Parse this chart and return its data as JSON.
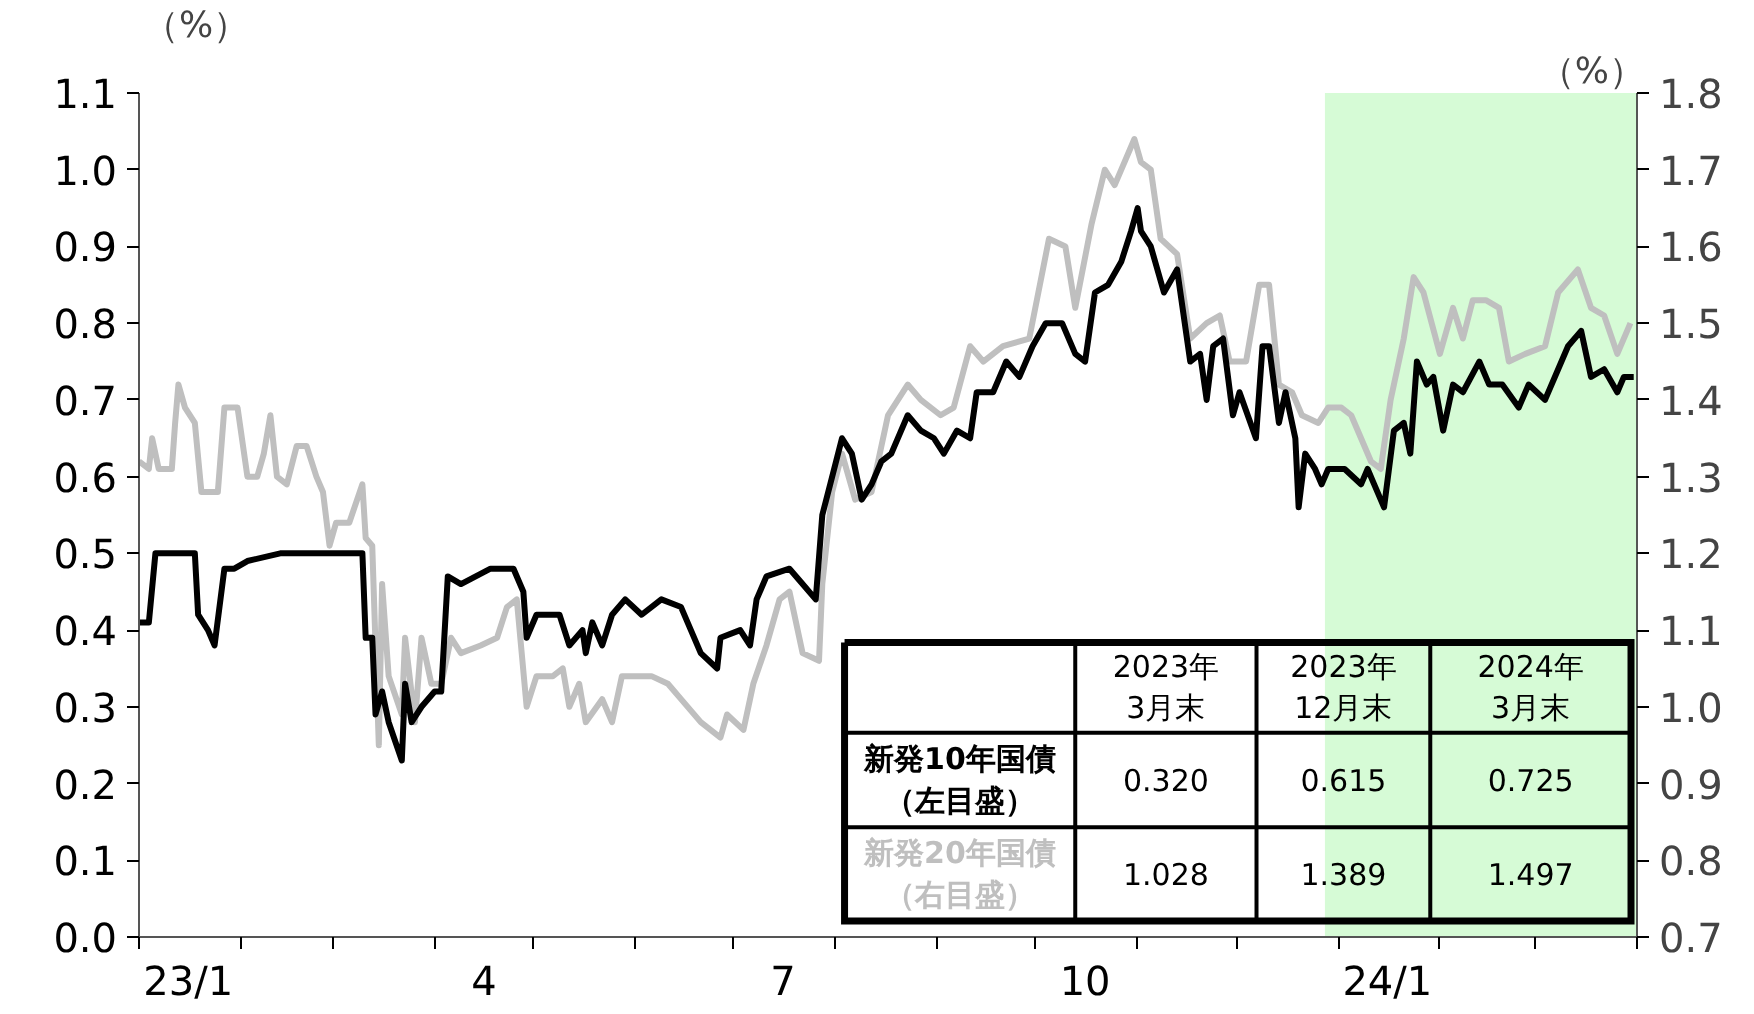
{
  "chart_data": {
    "type": "line",
    "ylabel": "（%）",
    "y2label": "（%）",
    "xlim": [
      "2023-01-01",
      "2024-04-01"
    ],
    "xticks": [
      {
        "value": "2023-01-01",
        "label": null
      },
      {
        "value": "2023-02-01",
        "label": null
      },
      {
        "value": "2023-03-01",
        "label": null
      },
      {
        "value": "2023-04-01",
        "label": null
      },
      {
        "value": "2023-05-01",
        "label": null
      },
      {
        "value": "2023-06-01",
        "label": null
      },
      {
        "value": "2023-07-01",
        "label": null
      },
      {
        "value": "2023-08-01",
        "label": null
      },
      {
        "value": "2023-09-01",
        "label": null
      },
      {
        "value": "2023-10-01",
        "label": null
      },
      {
        "value": "2023-11-01",
        "label": null
      },
      {
        "value": "2023-12-01",
        "label": null
      },
      {
        "value": "2024-01-01",
        "label": null
      },
      {
        "value": "2024-02-01",
        "label": null
      },
      {
        "value": "2024-03-01",
        "label": null
      },
      {
        "value": "2024-04-01",
        "label": null
      },
      {
        "value": "2023-01-16",
        "label": "23/1"
      },
      {
        "value": "2023-04-16",
        "label": "4"
      },
      {
        "value": "2023-07-16",
        "label": "7"
      },
      {
        "value": "2023-10-16",
        "label": "10"
      },
      {
        "value": "2024-01-16",
        "label": "24/1"
      }
    ],
    "ylim": [
      0,
      1.1
    ],
    "yticks": [
      {
        "value": 0,
        "label": "0.0"
      },
      0.1,
      0.2,
      0.3,
      0.4,
      0.5,
      0.6,
      0.7,
      0.8,
      0.9,
      {
        "value": 1,
        "label": "1.0"
      },
      1.1
    ],
    "y2lim": [
      0.7,
      1.8
    ],
    "y2ticks": [
      0.7,
      0.8,
      0.9,
      {
        "value": 1,
        "label": "1.0"
      },
      1.1,
      1.2,
      1.3,
      1.4,
      1.5,
      1.6,
      1.7,
      1.8
    ],
    "grid": false,
    "bands": [
      {
        "axis": "x",
        "from": "2023-12-28",
        "to": "2024-04-01",
        "color": "#d6fbd6"
      }
    ],
    "annotations": [
      "2023年\n3月末",
      "2023年\n12月末",
      "2024年\n3月末",
      "0.320",
      "0.615",
      "0.725",
      "1.028",
      "1.389",
      "1.497"
    ],
    "series": [
      {
        "name": "新発10年国債（左目盛）",
        "color": "#000000",
        "x": [
          "2023-01-01",
          "2023-01-04",
          "2023-01-06",
          "2023-01-18",
          "2023-01-19",
          "2023-01-22",
          "2023-01-24",
          "2023-01-27",
          "2023-01-30",
          "2023-02-03",
          "2023-02-13",
          "2023-03-10",
          "2023-03-11",
          "2023-03-13",
          "2023-03-14",
          "2023-03-16",
          "2023-03-18",
          "2023-03-22",
          "2023-03-23",
          "2023-03-25",
          "2023-03-28",
          "2023-04-01",
          "2023-04-03",
          "2023-04-05",
          "2023-04-09",
          "2023-04-18",
          "2023-04-25",
          "2023-04-28",
          "2023-04-29",
          "2023-05-02",
          "2023-05-09",
          "2023-05-12",
          "2023-05-16",
          "2023-05-17",
          "2023-05-19",
          "2023-05-22",
          "2023-05-25",
          "2023-05-29",
          "2023-06-03",
          "2023-06-09",
          "2023-06-15",
          "2023-06-18",
          "2023-06-21",
          "2023-06-26",
          "2023-06-27",
          "2023-07-03",
          "2023-07-06",
          "2023-07-08",
          "2023-07-11",
          "2023-07-18",
          "2023-07-22",
          "2023-07-26",
          "2023-07-28",
          "2023-07-31",
          "2023-08-03",
          "2023-08-06",
          "2023-08-09",
          "2023-08-12",
          "2023-08-15",
          "2023-08-18",
          "2023-08-23",
          "2023-08-27",
          "2023-08-31",
          "2023-09-03",
          "2023-09-07",
          "2023-09-11",
          "2023-09-13",
          "2023-09-18",
          "2023-09-22",
          "2023-09-26",
          "2023-09-30",
          "2023-10-04",
          "2023-10-09",
          "2023-10-13",
          "2023-10-16",
          "2023-10-19",
          "2023-10-23",
          "2023-10-27",
          "2023-10-30",
          "2023-11-01",
          "2023-11-02",
          "2023-11-05",
          "2023-11-09",
          "2023-11-13",
          "2023-11-17",
          "2023-11-20",
          "2023-11-22",
          "2023-11-24",
          "2023-11-27",
          "2023-11-30",
          "2023-12-02",
          "2023-12-07",
          "2023-12-09",
          "2023-12-11",
          "2023-12-14",
          "2023-12-16",
          "2023-12-19",
          "2023-12-20",
          "2023-12-22",
          "2023-12-25",
          "2023-12-27",
          "2023-12-29",
          "2024-01-03",
          "2024-01-08",
          "2024-01-10",
          "2024-01-12",
          "2024-01-15",
          "2024-01-18",
          "2024-01-21",
          "2024-01-23",
          "2024-01-25",
          "2024-01-28",
          "2024-01-30",
          "2024-02-02",
          "2024-02-05",
          "2024-02-08",
          "2024-02-13",
          "2024-02-16",
          "2024-02-20",
          "2024-02-25",
          "2024-02-28",
          "2024-03-04",
          "2024-03-08",
          "2024-03-11",
          "2024-03-15",
          "2024-03-18",
          "2024-03-22",
          "2024-03-26",
          "2024-03-28",
          "2024-03-31"
        ],
        "values": [
          0.41,
          0.41,
          0.5,
          0.5,
          0.42,
          0.4,
          0.38,
          0.48,
          0.48,
          0.49,
          0.5,
          0.5,
          0.39,
          0.39,
          0.29,
          0.32,
          0.28,
          0.23,
          0.33,
          0.28,
          0.3,
          0.32,
          0.32,
          0.47,
          0.46,
          0.48,
          0.48,
          0.45,
          0.39,
          0.42,
          0.42,
          0.38,
          0.4,
          0.37,
          0.41,
          0.38,
          0.42,
          0.44,
          0.42,
          0.44,
          0.43,
          0.4,
          0.37,
          0.35,
          0.39,
          0.4,
          0.38,
          0.44,
          0.47,
          0.48,
          0.46,
          0.44,
          0.55,
          0.6,
          0.65,
          0.63,
          0.57,
          0.59,
          0.62,
          0.63,
          0.68,
          0.66,
          0.65,
          0.63,
          0.66,
          0.65,
          0.71,
          0.71,
          0.75,
          0.73,
          0.77,
          0.8,
          0.8,
          0.76,
          0.75,
          0.84,
          0.85,
          0.88,
          0.92,
          0.95,
          0.92,
          0.9,
          0.84,
          0.87,
          0.75,
          0.76,
          0.7,
          0.77,
          0.78,
          0.68,
          0.71,
          0.65,
          0.77,
          0.77,
          0.67,
          0.71,
          0.65,
          0.56,
          0.63,
          0.61,
          0.59,
          0.61,
          0.61,
          0.59,
          0.61,
          0.59,
          0.56,
          0.66,
          0.67,
          0.63,
          0.75,
          0.72,
          0.73,
          0.66,
          0.72,
          0.71,
          0.75,
          0.72,
          0.72,
          0.69,
          0.72,
          0.7,
          0.74,
          0.77,
          0.79,
          0.73,
          0.74,
          0.71,
          0.73,
          0.73
        ]
      },
      {
        "name": "新発20年国債（右目盛）",
        "color": "#bfbfbf",
        "axis": "y2",
        "x": [
          "2023-01-01",
          "2023-01-04",
          "2023-01-05",
          "2023-01-07",
          "2023-01-11",
          "2023-01-12",
          "2023-01-13",
          "2023-01-15",
          "2023-01-18",
          "2023-01-20",
          "2023-01-25",
          "2023-01-27",
          "2023-01-31",
          "2023-02-03",
          "2023-02-06",
          "2023-02-08",
          "2023-02-10",
          "2023-02-12",
          "2023-02-15",
          "2023-02-18",
          "2023-02-21",
          "2023-02-24",
          "2023-02-26",
          "2023-02-28",
          "2023-03-02",
          "2023-03-06",
          "2023-03-10",
          "2023-03-11",
          "2023-03-13",
          "2023-03-15",
          "2023-03-16",
          "2023-03-18",
          "2023-03-22",
          "2023-03-23",
          "2023-03-26",
          "2023-03-28",
          "2023-03-31",
          "2023-04-03",
          "2023-04-06",
          "2023-04-09",
          "2023-04-15",
          "2023-04-20",
          "2023-04-23",
          "2023-04-26",
          "2023-04-29",
          "2023-05-02",
          "2023-05-07",
          "2023-05-10",
          "2023-05-12",
          "2023-05-15",
          "2023-05-17",
          "2023-05-22",
          "2023-05-25",
          "2023-05-28",
          "2023-06-03",
          "2023-06-06",
          "2023-06-11",
          "2023-06-15",
          "2023-06-21",
          "2023-06-27",
          "2023-06-29",
          "2023-07-04",
          "2023-07-07",
          "2023-07-11",
          "2023-07-15",
          "2023-07-18",
          "2023-07-22",
          "2023-07-27",
          "2023-07-28",
          "2023-07-31",
          "2023-08-03",
          "2023-08-07",
          "2023-08-12",
          "2023-08-17",
          "2023-08-23",
          "2023-08-27",
          "2023-09-02",
          "2023-09-06",
          "2023-09-11",
          "2023-09-15",
          "2023-09-21",
          "2023-09-29",
          "2023-10-05",
          "2023-10-10",
          "2023-10-13",
          "2023-10-18",
          "2023-10-22",
          "2023-10-25",
          "2023-10-31",
          "2023-11-02",
          "2023-11-05",
          "2023-11-08",
          "2023-11-13",
          "2023-11-17",
          "2023-11-22",
          "2023-11-26",
          "2023-11-29",
          "2023-12-04",
          "2023-12-08",
          "2023-12-11",
          "2023-12-14",
          "2023-12-18",
          "2023-12-21",
          "2023-12-26",
          "2023-12-29",
          "2024-01-02",
          "2024-01-05",
          "2024-01-11",
          "2024-01-14",
          "2024-01-17",
          "2024-01-21",
          "2024-01-24",
          "2024-01-27",
          "2024-02-01",
          "2024-02-05",
          "2024-02-08",
          "2024-02-11",
          "2024-02-15",
          "2024-02-19",
          "2024-02-22",
          "2024-02-27",
          "2024-03-04",
          "2024-03-08",
          "2024-03-14",
          "2024-03-18",
          "2024-03-22",
          "2024-03-26",
          "2024-03-30"
        ],
        "values": [
          1.32,
          1.31,
          1.35,
          1.31,
          1.31,
          1.37,
          1.42,
          1.39,
          1.37,
          1.28,
          1.28,
          1.39,
          1.39,
          1.3,
          1.3,
          1.33,
          1.38,
          1.3,
          1.29,
          1.34,
          1.34,
          1.3,
          1.28,
          1.21,
          1.24,
          1.24,
          1.29,
          1.22,
          1.21,
          0.95,
          1.16,
          1.04,
          0.99,
          1.09,
          0.98,
          1.09,
          1.03,
          1.03,
          1.09,
          1.07,
          1.08,
          1.09,
          1.13,
          1.14,
          1.0,
          1.04,
          1.04,
          1.05,
          1.0,
          1.03,
          0.98,
          1.01,
          0.98,
          1.04,
          1.04,
          1.04,
          1.03,
          1.01,
          0.98,
          0.96,
          0.99,
          0.97,
          1.03,
          1.08,
          1.14,
          1.15,
          1.07,
          1.06,
          1.16,
          1.28,
          1.33,
          1.27,
          1.28,
          1.38,
          1.42,
          1.4,
          1.38,
          1.39,
          1.47,
          1.45,
          1.47,
          1.48,
          1.61,
          1.6,
          1.52,
          1.63,
          1.7,
          1.68,
          1.74,
          1.71,
          1.7,
          1.61,
          1.59,
          1.48,
          1.5,
          1.51,
          1.45,
          1.45,
          1.55,
          1.55,
          1.42,
          1.41,
          1.38,
          1.37,
          1.39,
          1.39,
          1.38,
          1.32,
          1.31,
          1.4,
          1.48,
          1.56,
          1.54,
          1.46,
          1.52,
          1.48,
          1.53,
          1.53,
          1.52,
          1.45,
          1.46,
          1.47,
          1.54,
          1.57,
          1.52,
          1.51,
          1.46,
          1.5
        ]
      }
    ]
  }
}
